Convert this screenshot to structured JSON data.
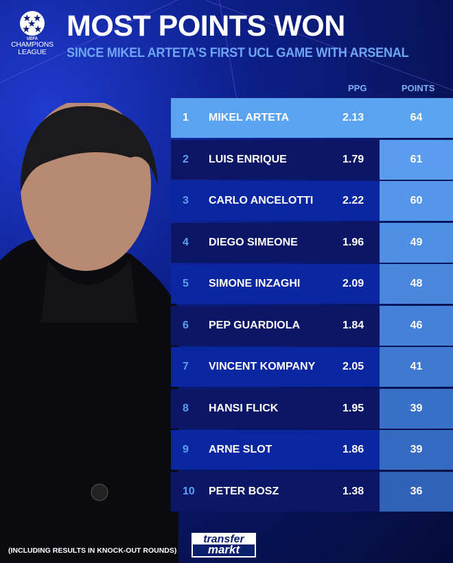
{
  "logo": {
    "uefa": "UEFA",
    "line1": "CHAMPIONS",
    "line2": "LEAGUE"
  },
  "title": "MOST POINTS WON",
  "subtitle": "SINCE MIKEL ARTETA'S FIRST UCL GAME WITH ARSENAL",
  "columns": {
    "ppg": "PPG",
    "points": "POINTS"
  },
  "rows": [
    {
      "rank": "1",
      "name": "MIKEL ARTETA",
      "ppg": "2.13",
      "points": "64"
    },
    {
      "rank": "2",
      "name": "LUIS ENRIQUE",
      "ppg": "1.79",
      "points": "61"
    },
    {
      "rank": "3",
      "name": "CARLO ANCELOTTI",
      "ppg": "2.22",
      "points": "60"
    },
    {
      "rank": "4",
      "name": "DIEGO SIMEONE",
      "ppg": "1.96",
      "points": "49"
    },
    {
      "rank": "5",
      "name": "SIMONE INZAGHI",
      "ppg": "2.09",
      "points": "48"
    },
    {
      "rank": "6",
      "name": "PEP GUARDIOLA",
      "ppg": "1.84",
      "points": "46"
    },
    {
      "rank": "7",
      "name": "VINCENT KOMPANY",
      "ppg": "2.05",
      "points": "41"
    },
    {
      "rank": "8",
      "name": "HANSI FLICK",
      "ppg": "1.95",
      "points": "39"
    },
    {
      "rank": "9",
      "name": "ARNE SLOT",
      "ppg": "1.86",
      "points": "39"
    },
    {
      "rank": "10",
      "name": "PETER BOSZ",
      "ppg": "1.38",
      "points": "36"
    }
  ],
  "colors": {
    "highlight": "#5aa3ef",
    "row_dark": "#0b1766",
    "row_light": "#0a26a0",
    "rank": "#5da0f2"
  },
  "footnote": "(INCLUDING RESULTS IN KNOCK-OUT ROUNDS)",
  "brand": {
    "top": "transfer",
    "bottom": "markt"
  }
}
